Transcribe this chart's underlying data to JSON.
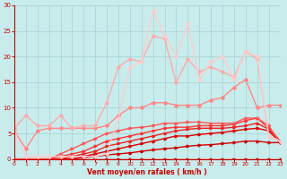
{
  "xlabel": "Vent moyen/en rafales ( km/h )",
  "ylim": [
    0,
    30
  ],
  "xlim": [
    0,
    23
  ],
  "yticks": [
    0,
    5,
    10,
    15,
    20,
    25,
    30
  ],
  "xticks": [
    0,
    1,
    2,
    3,
    4,
    5,
    6,
    7,
    8,
    9,
    10,
    11,
    12,
    13,
    14,
    15,
    16,
    17,
    18,
    19,
    20,
    21,
    22,
    23
  ],
  "bg_color": "#c8ecec",
  "grid_color": "#b0d8d8",
  "lines": [
    {
      "x": [
        0,
        1,
        2,
        3,
        4,
        5,
        6,
        7,
        8,
        9,
        10,
        11,
        12,
        13,
        14,
        15,
        16,
        17,
        18,
        19,
        20,
        21,
        22,
        23
      ],
      "y": [
        0,
        0,
        0,
        0,
        0,
        0,
        0,
        0,
        0,
        0,
        0,
        0,
        0,
        0,
        0,
        0,
        0,
        0,
        0,
        0,
        0,
        0,
        0,
        0
      ],
      "color": "#bb0000",
      "lw": 1.0,
      "marker": ">",
      "ms": 2.0
    },
    {
      "x": [
        0,
        1,
        2,
        3,
        4,
        5,
        6,
        7,
        8,
        9,
        10,
        11,
        12,
        13,
        14,
        15,
        16,
        17,
        18,
        19,
        20,
        21,
        22,
        23
      ],
      "y": [
        0,
        0,
        0,
        0,
        0,
        0,
        0.3,
        0.5,
        0.8,
        1.0,
        1.2,
        1.5,
        1.8,
        2.0,
        2.2,
        2.5,
        2.7,
        2.8,
        3.0,
        3.2,
        3.5,
        3.5,
        3.2,
        3.2
      ],
      "color": "#cc0000",
      "lw": 1.0,
      "marker": ">",
      "ms": 2.0
    },
    {
      "x": [
        0,
        1,
        2,
        3,
        4,
        5,
        6,
        7,
        8,
        9,
        10,
        11,
        12,
        13,
        14,
        15,
        16,
        17,
        18,
        19,
        20,
        21,
        22,
        23
      ],
      "y": [
        0,
        0,
        0,
        0,
        0,
        0,
        0.5,
        1.0,
        1.5,
        2.0,
        2.5,
        3.0,
        3.5,
        4.0,
        4.5,
        4.5,
        4.8,
        5.0,
        5.2,
        5.5,
        5.8,
        6.0,
        5.5,
        3.2
      ],
      "color": "#dd0000",
      "lw": 1.0,
      "marker": ">",
      "ms": 2.0
    },
    {
      "x": [
        0,
        1,
        2,
        3,
        4,
        5,
        6,
        7,
        8,
        9,
        10,
        11,
        12,
        13,
        14,
        15,
        16,
        17,
        18,
        19,
        20,
        21,
        22,
        23
      ],
      "y": [
        0,
        0,
        0,
        0,
        0,
        0.5,
        1.0,
        1.5,
        2.5,
        3.0,
        3.5,
        4.0,
        4.5,
        5.0,
        5.5,
        5.8,
        6.0,
        6.0,
        6.0,
        6.2,
        6.5,
        7.0,
        5.8,
        3.5
      ],
      "color": "#ee2222",
      "lw": 1.0,
      "marker": ">",
      "ms": 2.0
    },
    {
      "x": [
        0,
        1,
        2,
        3,
        4,
        5,
        6,
        7,
        8,
        9,
        10,
        11,
        12,
        13,
        14,
        15,
        16,
        17,
        18,
        19,
        20,
        21,
        22,
        23
      ],
      "y": [
        0,
        0,
        0,
        0,
        0.5,
        1.0,
        1.5,
        2.5,
        3.5,
        4.0,
        4.5,
        5.0,
        5.5,
        6.0,
        6.2,
        6.2,
        6.5,
        6.5,
        6.5,
        6.8,
        7.5,
        8.0,
        6.0,
        3.5
      ],
      "color": "#ff3333",
      "lw": 1.0,
      "marker": ">",
      "ms": 2.0
    },
    {
      "x": [
        0,
        1,
        2,
        3,
        4,
        5,
        6,
        7,
        8,
        9,
        10,
        11,
        12,
        13,
        14,
        15,
        16,
        17,
        18,
        19,
        20,
        21,
        22,
        23
      ],
      "y": [
        0,
        0,
        0,
        0,
        1.0,
        2.0,
        3.0,
        4.0,
        5.0,
        5.5,
        6.0,
        6.2,
        6.5,
        7.0,
        7.0,
        7.2,
        7.2,
        7.0,
        7.0,
        7.0,
        8.0,
        8.0,
        6.5,
        3.2
      ],
      "color": "#ff5555",
      "lw": 1.0,
      "marker": ">",
      "ms": 2.0
    },
    {
      "x": [
        0,
        1,
        2,
        3,
        4,
        5,
        6,
        7,
        8,
        9,
        10,
        11,
        12,
        13,
        14,
        15,
        16,
        17,
        18,
        19,
        20,
        21,
        22,
        23
      ],
      "y": [
        5.5,
        2.0,
        5.5,
        6.0,
        6.0,
        6.0,
        6.0,
        6.0,
        6.5,
        8.5,
        10.0,
        10.0,
        11.0,
        11.0,
        10.5,
        10.5,
        10.5,
        11.5,
        12.0,
        14.0,
        15.5,
        10.0,
        10.5,
        10.5
      ],
      "color": "#ff8888",
      "lw": 1.0,
      "marker": "D",
      "ms": 2.0
    },
    {
      "x": [
        0,
        1,
        2,
        3,
        4,
        5,
        6,
        7,
        8,
        9,
        10,
        11,
        12,
        13,
        14,
        15,
        16,
        17,
        18,
        19,
        20,
        21,
        22,
        23
      ],
      "y": [
        6.0,
        8.5,
        6.5,
        6.5,
        8.5,
        6.0,
        6.5,
        6.5,
        11.0,
        18.0,
        19.5,
        19.0,
        24.0,
        23.5,
        15.0,
        19.5,
        17.0,
        18.0,
        17.0,
        16.0,
        21.0,
        19.5,
        4.5,
        3.5
      ],
      "color": "#ffaaaa",
      "lw": 1.0,
      "marker": "D",
      "ms": 1.8
    },
    {
      "x": [
        0,
        1,
        2,
        3,
        4,
        5,
        6,
        7,
        8,
        9,
        10,
        11,
        12,
        13,
        14,
        15,
        16,
        17,
        18,
        19,
        20,
        21,
        22,
        23
      ],
      "y": [
        5.5,
        0.5,
        0.5,
        0.5,
        0.5,
        0.5,
        0.5,
        0.5,
        1.0,
        8.0,
        18.0,
        19.0,
        29.0,
        24.0,
        20.0,
        26.5,
        15.5,
        19.0,
        20.0,
        15.5,
        21.0,
        20.0,
        4.5,
        3.5
      ],
      "color": "#ffcccc",
      "lw": 1.0,
      "marker": "D",
      "ms": 1.8
    }
  ]
}
